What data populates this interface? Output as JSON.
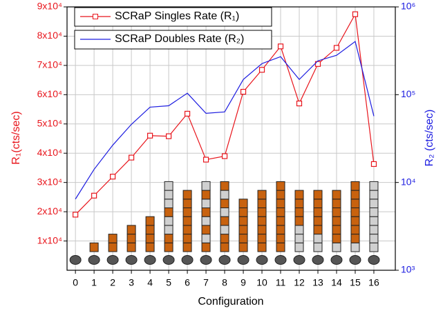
{
  "chart_data": {
    "type": "line",
    "xlabel": "Configuration",
    "ylabel": "R₁(cts/sec)",
    "y2label": "R₂ (cts/sec)",
    "x": [
      0,
      1,
      2,
      3,
      4,
      5,
      6,
      7,
      8,
      9,
      10,
      11,
      12,
      13,
      14,
      15,
      16
    ],
    "xlim": [
      -0.45,
      17.15
    ],
    "xticks": [
      0,
      1,
      2,
      3,
      4,
      5,
      6,
      7,
      8,
      9,
      10,
      11,
      12,
      13,
      14,
      15,
      16
    ],
    "ylim": [
      0,
      90000
    ],
    "yticks": [
      {
        "value": 10000,
        "label": "1x10⁴"
      },
      {
        "value": 20000,
        "label": "2x10⁴"
      },
      {
        "value": 30000,
        "label": "3x10⁴"
      },
      {
        "value": 40000,
        "label": "4x10⁴"
      },
      {
        "value": 50000,
        "label": "5x10⁴"
      },
      {
        "value": 60000,
        "label": "6x10⁴"
      },
      {
        "value": 70000,
        "label": "7x10⁴"
      },
      {
        "value": 80000,
        "label": "8x10⁴"
      },
      {
        "value": 90000,
        "label": "9x10⁴"
      }
    ],
    "y2lim": [
      1000,
      1000000
    ],
    "y2scale": "log",
    "y2ticks": [
      {
        "value": 1000,
        "label": "10³"
      },
      {
        "value": 10000,
        "label": "10⁴"
      },
      {
        "value": 100000,
        "label": "10⁵"
      },
      {
        "value": 1000000,
        "label": "10⁶"
      }
    ],
    "grid": true,
    "legend": "upper left",
    "series": [
      {
        "name": "SCRaP Singles Rate (R₁)",
        "color": "#e8141b",
        "values": [
          19000,
          25500,
          32000,
          38500,
          46000,
          45800,
          53500,
          37800,
          39000,
          61000,
          68500,
          76500,
          57000,
          70500,
          76000,
          87500,
          36300
        ]
      },
      {
        "name": "SCRaP Doubles Rate (R₂)",
        "color": "#1b1be0",
        "axis": "y2",
        "values": [
          6470,
          14100,
          26600,
          45900,
          72100,
          74800,
          104000,
          61300,
          63600,
          149000,
          226000,
          271000,
          149000,
          243000,
          281000,
          404000,
          57000
        ]
      }
    ]
  }
}
